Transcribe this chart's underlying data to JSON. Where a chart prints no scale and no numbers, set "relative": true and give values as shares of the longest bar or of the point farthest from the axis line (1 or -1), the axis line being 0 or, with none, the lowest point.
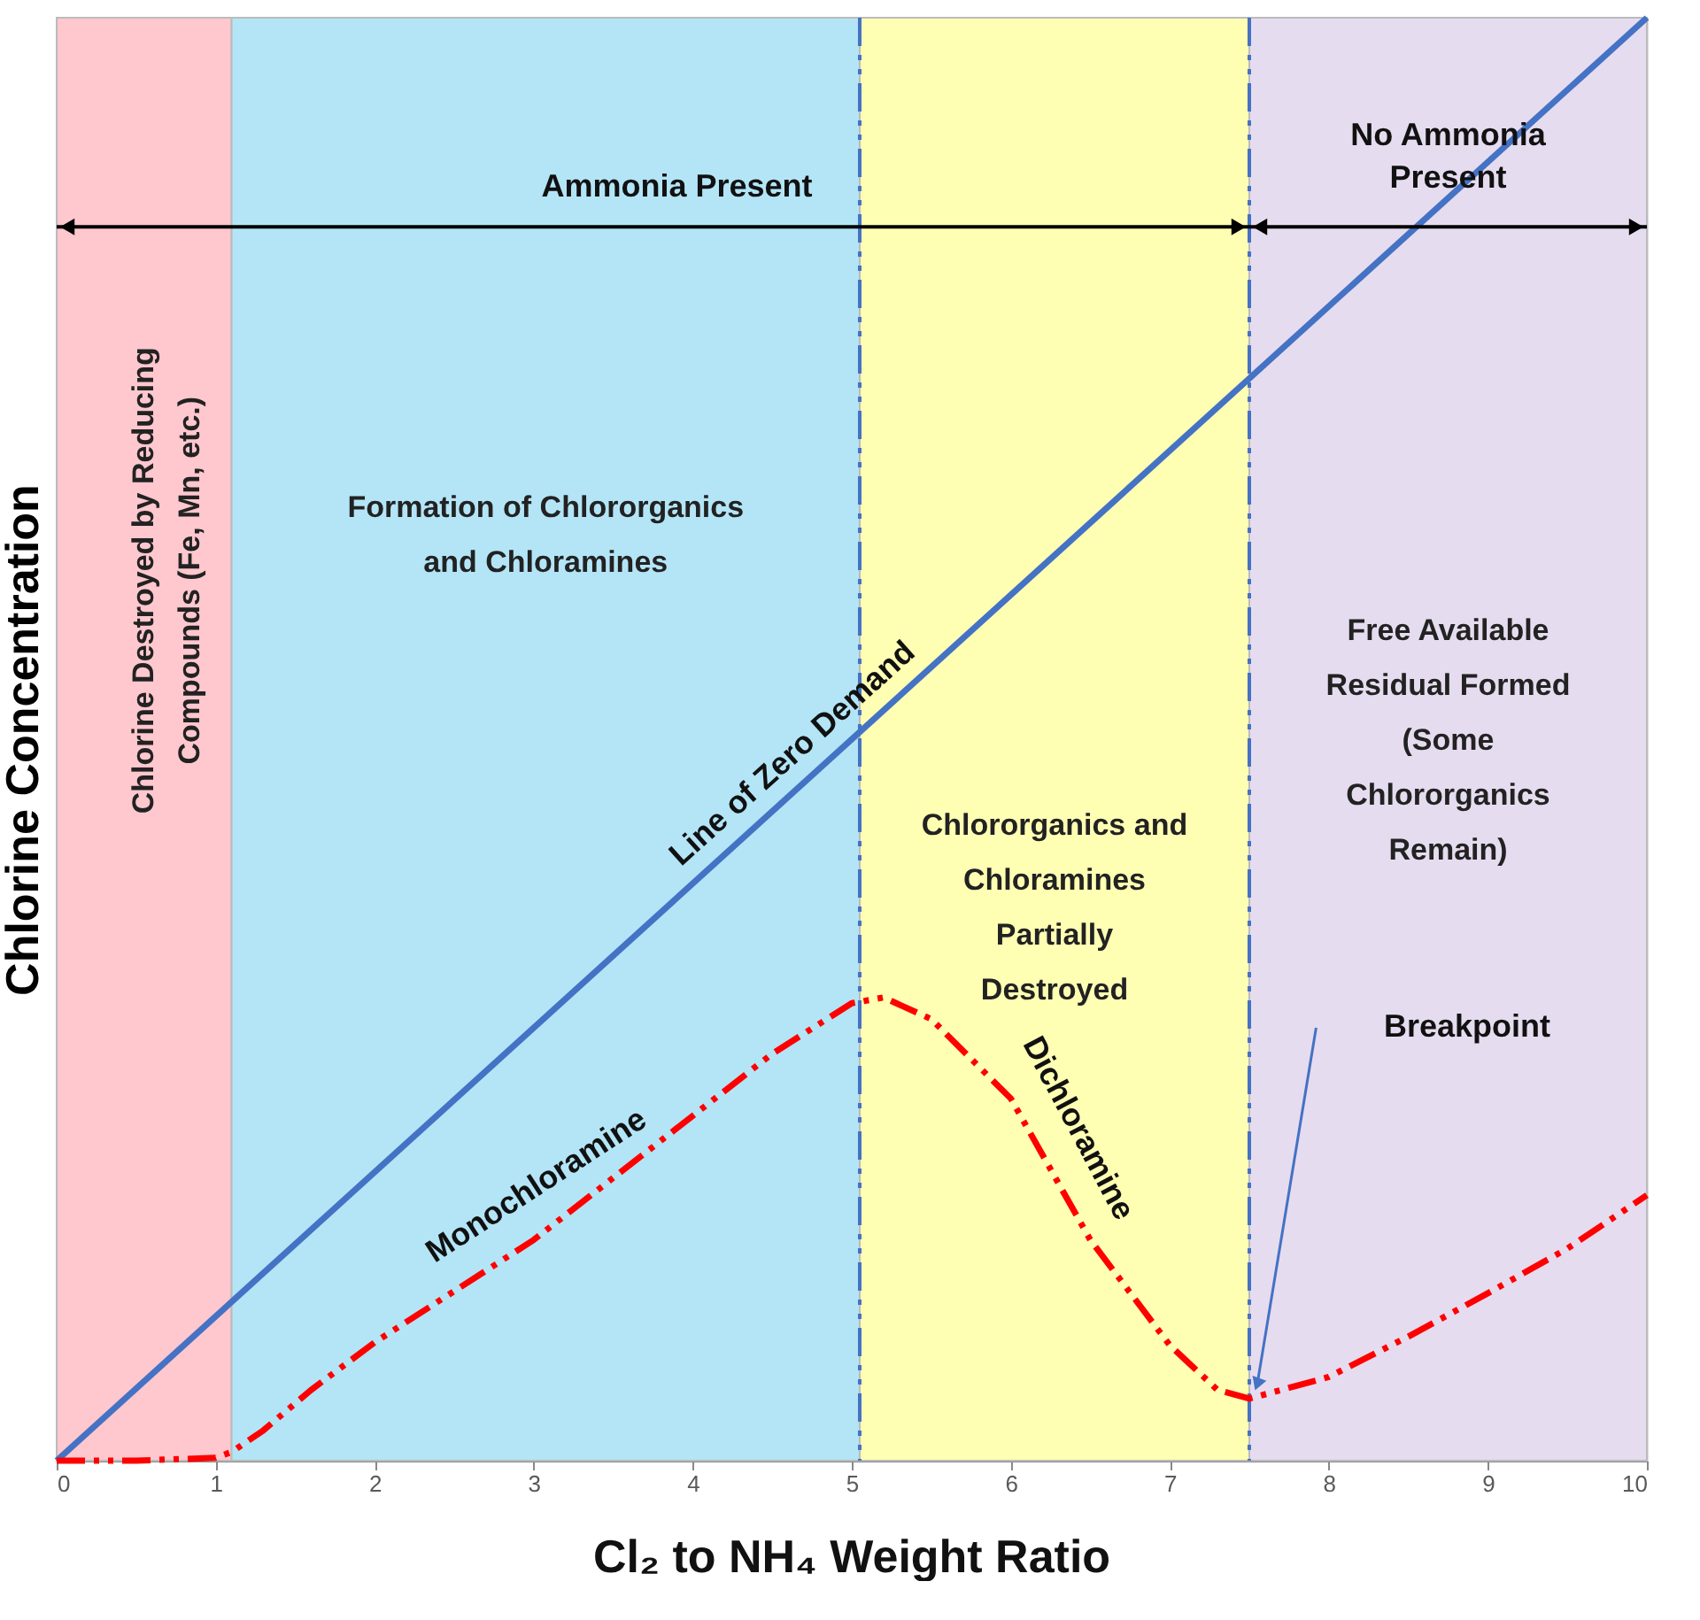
{
  "chart_data": {
    "type": "line",
    "xlabel": "Cl₂ to NH₄ Weight Ratio",
    "ylabel": "Chlorine Concentration",
    "relative": true,
    "xlim": [
      0,
      10
    ],
    "xticks": [
      0,
      1,
      2,
      3,
      4,
      5,
      6,
      7,
      8,
      9,
      10
    ],
    "series": [
      {
        "name": "Line of Zero Demand",
        "color": "#4472c4",
        "line_style": "solid",
        "x": [
          0,
          10
        ],
        "values": [
          0,
          1
        ]
      },
      {
        "color": "#ff0000",
        "line_style": "dashed",
        "x": [
          0,
          0.5,
          1.0,
          1.1,
          1.3,
          1.6,
          2,
          3,
          4,
          4.5,
          5,
          5.2,
          5.5,
          6,
          6.5,
          7,
          7.3,
          7.5,
          8,
          8.5,
          9,
          9.5,
          10
        ],
        "values": [
          0,
          0,
          0.002,
          0.006,
          0.021,
          0.049,
          0.082,
          0.153,
          0.239,
          0.282,
          0.317,
          0.321,
          0.306,
          0.251,
          0.153,
          0.08,
          0.049,
          0.043,
          0.058,
          0.086,
          0.116,
          0.147,
          0.184
        ]
      }
    ],
    "bands": [
      {
        "axis": "x",
        "from": 0,
        "to": 1.1,
        "color": "#ffc7ce",
        "label": "Chlorine Destroyed by Reducing\nCompounds (Fe, Mn, etc.)"
      },
      {
        "axis": "x",
        "from": 1.1,
        "to": 5.05,
        "color": "#b3e5f7",
        "label": "Formation of Chlororganics\nand Chloramines"
      },
      {
        "axis": "x",
        "from": 5.05,
        "to": 7.5,
        "color": "#ffffb3",
        "label": "Chlororganics and\nChloramines\nPartially\nDestroyed"
      },
      {
        "axis": "x",
        "from": 7.5,
        "to": 10,
        "color": "#e6dcef",
        "label": "Free Available\nResidual Formed\n(Some\nChlororganics\nRemain)"
      }
    ],
    "ref_lines": [
      {
        "axis": "x",
        "value": 5.05,
        "color": "#4472c4",
        "line_style": "dashed"
      },
      {
        "axis": "x",
        "value": 7.5,
        "color": "#4472c4",
        "line_style": "dashed"
      }
    ],
    "annotations": [
      "Ammonia Present",
      "No Ammonia\nPresent",
      "Monochloramine",
      "Dichloramine",
      "Breakpoint"
    ]
  }
}
